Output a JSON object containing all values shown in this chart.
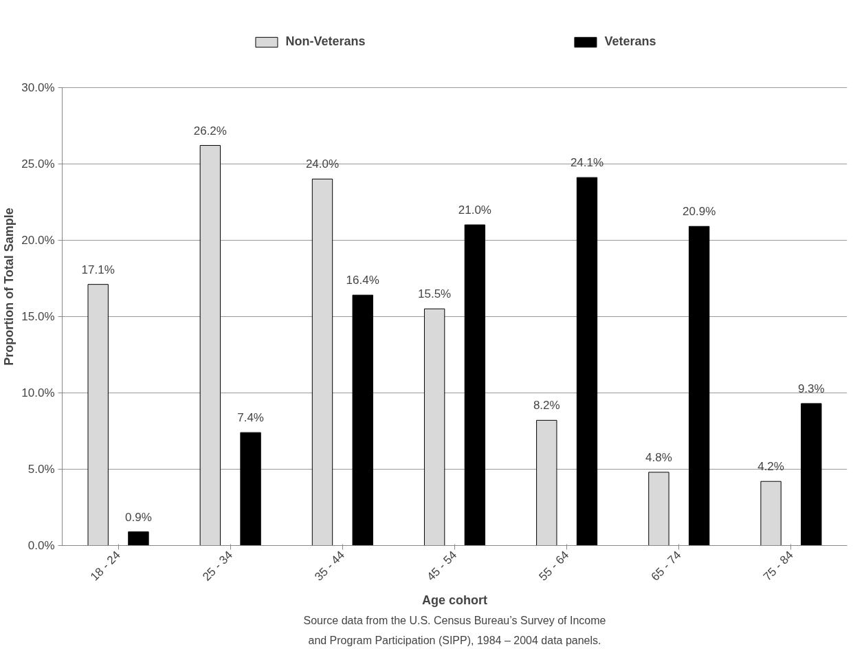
{
  "chart_data": {
    "type": "bar",
    "xlabel": "Age cohort",
    "ylabel": "Proportion of Total Sample",
    "categories": [
      "18 - 24",
      "25 - 34",
      "35 - 44",
      "45 - 54",
      "55 - 64",
      "65 - 74",
      "75 - 84"
    ],
    "series": [
      {
        "name": "Non-Veterans",
        "color": "#d9d9d9",
        "values": [
          17.1,
          26.2,
          24.0,
          15.5,
          8.2,
          4.8,
          4.2
        ],
        "value_labels": [
          "17.1%",
          "26.2%",
          "24.0%",
          "15.5%",
          "8.2%",
          "4.8%",
          "4.2%"
        ]
      },
      {
        "name": "Veterans",
        "color": "#000000",
        "values": [
          0.9,
          7.4,
          16.4,
          21.0,
          24.1,
          20.9,
          9.3
        ],
        "value_labels": [
          "0.9%",
          "7.4%",
          "16.4%",
          "21.0%",
          "24.1%",
          "20.9%",
          "9.3%"
        ]
      }
    ],
    "ylim": [
      0,
      30
    ],
    "yticks": [
      {
        "value": 0,
        "label": "0.0%"
      },
      {
        "value": 5,
        "label": "5.0%"
      },
      {
        "value": 10,
        "label": "10.0%"
      },
      {
        "value": 15,
        "label": "15.0%"
      },
      {
        "value": 20,
        "label": "20.0%"
      },
      {
        "value": 25,
        "label": "25.0%"
      },
      {
        "value": 30,
        "label": "30.0%"
      }
    ],
    "grid": "y",
    "legend": "top",
    "annotations": [
      "Source data from the U.S. Census Bureau’s Survey of Income",
      "and Program Participation (SIPP), 1984 – 2004 data panels."
    ]
  }
}
